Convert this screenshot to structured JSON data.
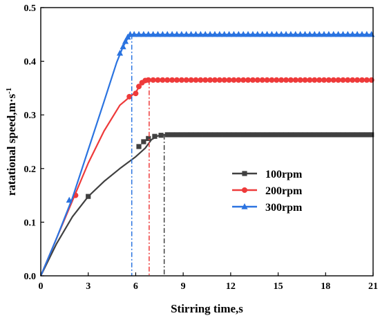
{
  "chart_data": {
    "type": "line",
    "xlabel": "Stirring time,s",
    "ylabel": "ratational speed,m·s",
    "ylabel_exponent": "-1",
    "xlim": [
      0,
      21
    ],
    "ylim": [
      0,
      0.5
    ],
    "x_ticks": [
      "0",
      "3",
      "6",
      "9",
      "12",
      "15",
      "18",
      "21"
    ],
    "y_ticks": [
      "0.0",
      "0.1",
      "0.2",
      "0.3",
      "0.4",
      "0.5"
    ],
    "legend_position": "center-right",
    "series": [
      {
        "name": "100rpm",
        "color": "#404040",
        "marker": "square",
        "curve": [
          [
            0,
            0
          ],
          [
            1,
            0.06
          ],
          [
            2,
            0.11
          ],
          [
            3,
            0.148
          ],
          [
            4,
            0.176
          ],
          [
            5,
            0.2
          ],
          [
            6,
            0.222
          ],
          [
            6.6,
            0.238
          ],
          [
            7,
            0.254
          ],
          [
            7.4,
            0.261
          ],
          [
            7.8,
            0.263
          ],
          [
            21,
            0.263
          ]
        ],
        "markers": [
          [
            3,
            0.148
          ],
          [
            6.2,
            0.241
          ],
          [
            6.5,
            0.25
          ],
          [
            6.8,
            0.256
          ],
          [
            7.2,
            0.26
          ],
          [
            7.6,
            0.262
          ],
          [
            8,
            0.263
          ],
          [
            8.3,
            0.263
          ],
          [
            8.6,
            0.263
          ],
          [
            8.9,
            0.263
          ],
          [
            9.2,
            0.263
          ],
          [
            9.5,
            0.263
          ],
          [
            9.8,
            0.263
          ],
          [
            10.1,
            0.263
          ],
          [
            10.4,
            0.263
          ],
          [
            10.7,
            0.263
          ],
          [
            11,
            0.263
          ],
          [
            11.3,
            0.263
          ],
          [
            11.6,
            0.263
          ],
          [
            11.9,
            0.263
          ],
          [
            12.2,
            0.263
          ],
          [
            12.5,
            0.263
          ],
          [
            12.8,
            0.263
          ],
          [
            13.1,
            0.263
          ],
          [
            13.4,
            0.263
          ],
          [
            13.7,
            0.263
          ],
          [
            14,
            0.263
          ],
          [
            14.3,
            0.263
          ],
          [
            14.6,
            0.263
          ],
          [
            14.9,
            0.263
          ],
          [
            15.2,
            0.263
          ],
          [
            15.5,
            0.263
          ],
          [
            15.8,
            0.263
          ],
          [
            16.1,
            0.263
          ],
          [
            16.4,
            0.263
          ],
          [
            16.7,
            0.263
          ],
          [
            17,
            0.263
          ],
          [
            17.3,
            0.263
          ],
          [
            17.6,
            0.263
          ],
          [
            17.9,
            0.263
          ],
          [
            18.2,
            0.263
          ],
          [
            18.5,
            0.263
          ],
          [
            18.8,
            0.263
          ],
          [
            19.1,
            0.263
          ],
          [
            19.4,
            0.263
          ],
          [
            19.7,
            0.263
          ],
          [
            20,
            0.263
          ],
          [
            20.3,
            0.263
          ],
          [
            20.6,
            0.263
          ],
          [
            20.9,
            0.263
          ]
        ],
        "drop_x": 7.8
      },
      {
        "name": "200rpm",
        "color": "#ee3a3a",
        "marker": "circle",
        "curve": [
          [
            0,
            0
          ],
          [
            1,
            0.07
          ],
          [
            2,
            0.14
          ],
          [
            3,
            0.21
          ],
          [
            4,
            0.27
          ],
          [
            5,
            0.318
          ],
          [
            5.6,
            0.333
          ],
          [
            6,
            0.342
          ],
          [
            6.3,
            0.356
          ],
          [
            6.6,
            0.363
          ],
          [
            6.9,
            0.365
          ],
          [
            21,
            0.365
          ]
        ],
        "markers": [
          [
            2.2,
            0.15
          ],
          [
            5.6,
            0.334
          ],
          [
            6,
            0.34
          ],
          [
            6.2,
            0.353
          ],
          [
            6.4,
            0.36
          ],
          [
            6.6,
            0.364
          ],
          [
            6.8,
            0.365
          ],
          [
            7.1,
            0.365
          ],
          [
            7.4,
            0.365
          ],
          [
            7.7,
            0.365
          ],
          [
            8,
            0.365
          ],
          [
            8.3,
            0.365
          ],
          [
            8.6,
            0.365
          ],
          [
            8.9,
            0.365
          ],
          [
            9.2,
            0.365
          ],
          [
            9.5,
            0.365
          ],
          [
            9.8,
            0.365
          ],
          [
            10.1,
            0.365
          ],
          [
            10.4,
            0.365
          ],
          [
            10.7,
            0.365
          ],
          [
            11,
            0.365
          ],
          [
            11.3,
            0.365
          ],
          [
            11.6,
            0.365
          ],
          [
            11.9,
            0.365
          ],
          [
            12.2,
            0.365
          ],
          [
            12.5,
            0.365
          ],
          [
            12.8,
            0.365
          ],
          [
            13.1,
            0.365
          ],
          [
            13.4,
            0.365
          ],
          [
            13.7,
            0.365
          ],
          [
            14,
            0.365
          ],
          [
            14.3,
            0.365
          ],
          [
            14.6,
            0.365
          ],
          [
            14.9,
            0.365
          ],
          [
            15.2,
            0.365
          ],
          [
            15.5,
            0.365
          ],
          [
            15.8,
            0.365
          ],
          [
            16.1,
            0.365
          ],
          [
            16.4,
            0.365
          ],
          [
            16.7,
            0.365
          ],
          [
            17,
            0.365
          ],
          [
            17.3,
            0.365
          ],
          [
            17.6,
            0.365
          ],
          [
            17.9,
            0.365
          ],
          [
            18.2,
            0.365
          ],
          [
            18.5,
            0.365
          ],
          [
            18.8,
            0.365
          ],
          [
            19.1,
            0.365
          ],
          [
            19.4,
            0.365
          ],
          [
            19.7,
            0.365
          ],
          [
            20,
            0.365
          ],
          [
            20.3,
            0.365
          ],
          [
            20.6,
            0.365
          ],
          [
            20.9,
            0.365
          ]
        ],
        "drop_x": 6.85
      },
      {
        "name": "300rpm",
        "color": "#2a73e0",
        "marker": "triangle",
        "curve": [
          [
            0,
            0
          ],
          [
            1,
            0.07
          ],
          [
            2,
            0.145
          ],
          [
            3,
            0.235
          ],
          [
            4,
            0.325
          ],
          [
            4.8,
            0.398
          ],
          [
            5.2,
            0.427
          ],
          [
            5.5,
            0.443
          ],
          [
            5.8,
            0.45
          ],
          [
            21,
            0.45
          ]
        ],
        "markers": [
          [
            1.8,
            0.141
          ],
          [
            5,
            0.415
          ],
          [
            5.2,
            0.427
          ],
          [
            5.35,
            0.437
          ],
          [
            5.5,
            0.445
          ],
          [
            5.65,
            0.45
          ],
          [
            5.9,
            0.45
          ],
          [
            6.2,
            0.45
          ],
          [
            6.5,
            0.45
          ],
          [
            6.8,
            0.45
          ],
          [
            7.1,
            0.45
          ],
          [
            7.4,
            0.45
          ],
          [
            7.7,
            0.45
          ],
          [
            8,
            0.45
          ],
          [
            8.3,
            0.45
          ],
          [
            8.6,
            0.45
          ],
          [
            8.9,
            0.45
          ],
          [
            9.2,
            0.45
          ],
          [
            9.5,
            0.45
          ],
          [
            9.8,
            0.45
          ],
          [
            10.1,
            0.45
          ],
          [
            10.4,
            0.45
          ],
          [
            10.7,
            0.45
          ],
          [
            11,
            0.45
          ],
          [
            11.3,
            0.45
          ],
          [
            11.6,
            0.45
          ],
          [
            11.9,
            0.45
          ],
          [
            12.2,
            0.45
          ],
          [
            12.5,
            0.45
          ],
          [
            12.8,
            0.45
          ],
          [
            13.1,
            0.45
          ],
          [
            13.4,
            0.45
          ],
          [
            13.7,
            0.45
          ],
          [
            14,
            0.45
          ],
          [
            14.3,
            0.45
          ],
          [
            14.6,
            0.45
          ],
          [
            14.9,
            0.45
          ],
          [
            15.2,
            0.45
          ],
          [
            15.5,
            0.45
          ],
          [
            15.8,
            0.45
          ],
          [
            16.1,
            0.45
          ],
          [
            16.4,
            0.45
          ],
          [
            16.7,
            0.45
          ],
          [
            17,
            0.45
          ],
          [
            17.3,
            0.45
          ],
          [
            17.6,
            0.45
          ],
          [
            17.9,
            0.45
          ],
          [
            18.2,
            0.45
          ],
          [
            18.5,
            0.45
          ],
          [
            18.8,
            0.45
          ],
          [
            19.1,
            0.45
          ],
          [
            19.4,
            0.45
          ],
          [
            19.7,
            0.45
          ],
          [
            20,
            0.45
          ],
          [
            20.3,
            0.45
          ],
          [
            20.6,
            0.45
          ],
          [
            20.9,
            0.45
          ]
        ],
        "drop_x": 5.75
      }
    ]
  }
}
